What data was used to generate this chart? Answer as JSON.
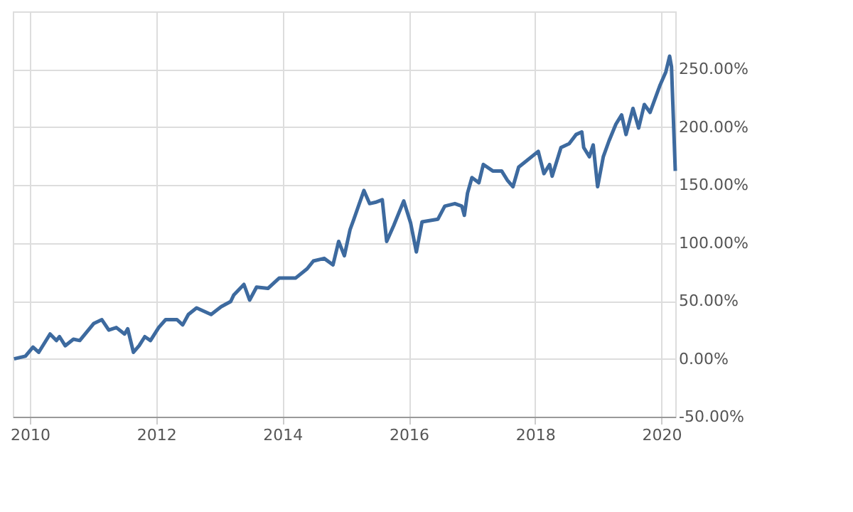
{
  "chart_data": {
    "type": "line",
    "color": "#3d6a9f",
    "grid": true,
    "marker": "none",
    "line_style": "solid",
    "xlim": [
      2009.73,
      2020.22
    ],
    "xticks": [
      2010,
      2012,
      2014,
      2016,
      2018,
      2020
    ],
    "ylim": [
      -50,
      300
    ],
    "yticks": [
      {
        "value": -50,
        "label": "-50.00%"
      },
      {
        "value": 0,
        "label": "0.00%"
      },
      {
        "value": 50,
        "label": "50.00%"
      },
      {
        "value": 100,
        "label": "100.00%"
      },
      {
        "value": 150,
        "label": "150.00%"
      },
      {
        "value": 200,
        "label": "200.00%"
      },
      {
        "value": 250,
        "label": "250.00%"
      },
      {
        "value": 300,
        "label": null
      }
    ],
    "x": [
      2009.75,
      2009.93,
      2010.05,
      2010.14,
      2010.32,
      2010.42,
      2010.47,
      2010.56,
      2010.69,
      2010.79,
      2011.01,
      2011.14,
      2011.25,
      2011.37,
      2011.5,
      2011.55,
      2011.64,
      2011.73,
      2011.82,
      2011.91,
      2012.04,
      2012.15,
      2012.33,
      2012.42,
      2012.51,
      2012.64,
      2012.87,
      2013.03,
      2013.18,
      2013.23,
      2013.39,
      2013.48,
      2013.59,
      2013.77,
      2013.95,
      2014.21,
      2014.39,
      2014.49,
      2014.66,
      2014.8,
      2014.89,
      2014.98,
      2015.07,
      2015.13,
      2015.29,
      2015.38,
      2015.47,
      2015.58,
      2015.65,
      2015.76,
      2015.92,
      2016.03,
      2016.12,
      2016.21,
      2016.46,
      2016.57,
      2016.73,
      2016.84,
      2016.88,
      2016.93,
      2017.0,
      2017.11,
      2017.18,
      2017.33,
      2017.47,
      2017.56,
      2017.65,
      2017.74,
      2017.87,
      2018.05,
      2018.14,
      2018.23,
      2018.27,
      2018.41,
      2018.54,
      2018.65,
      2018.74,
      2018.77,
      2018.86,
      2018.92,
      2018.99,
      2019.08,
      2019.17,
      2019.28,
      2019.37,
      2019.44,
      2019.55,
      2019.64,
      2019.73,
      2019.82,
      2019.98,
      2020.07,
      2020.13,
      2020.16,
      2020.18,
      2020.22
    ],
    "values": [
      0,
      2.3,
      10.1,
      5.6,
      21.4,
      15.8,
      19.1,
      11.3,
      16.9,
      15.8,
      30.4,
      33.8,
      24.8,
      27.0,
      21.4,
      25.9,
      5.6,
      11.3,
      19.1,
      15.8,
      27.0,
      33.8,
      33.8,
      29.3,
      38.3,
      43.9,
      38.3,
      45.0,
      49.5,
      55.2,
      64.2,
      50.7,
      61.9,
      60.8,
      69.8,
      69.8,
      77.7,
      84.5,
      86.7,
      81.1,
      101.4,
      89.0,
      111.5,
      120.5,
      145.3,
      134.0,
      135.1,
      137.4,
      101.4,
      114.9,
      136.3,
      117.1,
      92.3,
      118.2,
      120.5,
      131.8,
      134.0,
      131.8,
      123.9,
      143.0,
      156.5,
      152.0,
      167.8,
      162.2,
      162.2,
      154.3,
      148.6,
      165.5,
      171.2,
      179.1,
      159.9,
      167.8,
      157.7,
      182.4,
      185.8,
      193.7,
      195.9,
      182.4,
      174.5,
      184.7,
      148.6,
      174.5,
      188.1,
      202.7,
      210.6,
      193.7,
      216.2,
      199.3,
      219.6,
      212.8,
      236.5,
      247.7,
      261.3,
      252.3,
      221.8,
      162.2
    ]
  }
}
